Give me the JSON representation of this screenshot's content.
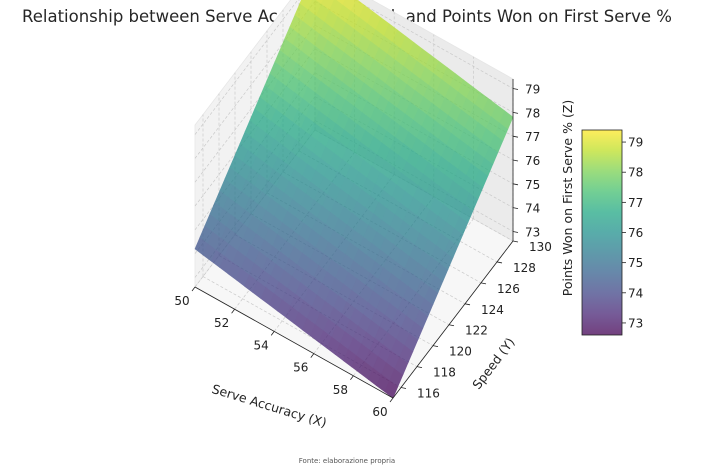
{
  "chart_data": {
    "type": "surface",
    "title": "Relationship between Serve Accuracy, Speed, and Points Won on First Serve %",
    "xlabel": "Serve Accuracy (X)",
    "ylabel": "Speed (Y)",
    "zlabel": "Points Won on First Serve % (Z)",
    "xlim": [
      50,
      60
    ],
    "ylim": [
      115,
      130
    ],
    "zlim": [
      72.6,
      79.4
    ],
    "x_ticks": [
      50,
      52,
      54,
      56,
      58,
      60
    ],
    "y_ticks": [
      116,
      118,
      120,
      122,
      124,
      126,
      128,
      130
    ],
    "z_ticks": [
      73,
      74,
      75,
      76,
      77,
      78,
      79
    ],
    "surface_corners": [
      {
        "x": 50,
        "y": 115,
        "z": 74.2
      },
      {
        "x": 60,
        "y": 115,
        "z": 72.6
      },
      {
        "x": 60,
        "y": 130,
        "z": 77.8
      },
      {
        "x": 50,
        "y": 130,
        "z": 79.4
      }
    ],
    "colormap": "viridis",
    "surface_alpha": 0.75,
    "colorbar": {
      "range": [
        72.6,
        79.4
      ],
      "ticks": [
        73,
        74,
        75,
        76,
        77,
        78,
        79
      ],
      "placement": "right"
    },
    "grid": true
  },
  "source_note": "Fonte: elaborazione propria"
}
